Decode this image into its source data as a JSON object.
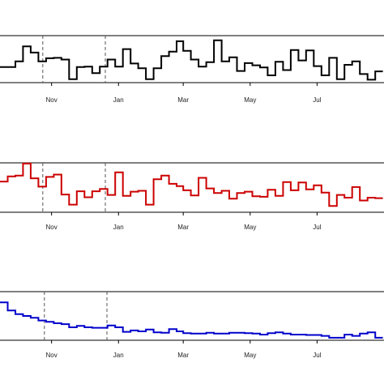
{
  "chart_data": [
    {
      "type": "line",
      "step": true,
      "color": "#000000",
      "x_ticks": [
        "Nov",
        "Jan",
        "Mar",
        "May",
        "Jul"
      ],
      "dashed_lines": [
        "Oct 24",
        "Dec 20"
      ],
      "ylim": [
        0,
        1
      ],
      "series": [
        {
          "x": [
            "Sep 15",
            "Sep 22",
            "Sep 29",
            "Oct 6",
            "Oct 13",
            "Oct 20",
            "Oct 27",
            "Nov 3",
            "Nov 10",
            "Nov 17",
            "Nov 24",
            "Dec 1",
            "Dec 8",
            "Dec 15",
            "Dec 22",
            "Dec 29",
            "Jan 5",
            "Jan 12",
            "Jan 19",
            "Jan 26",
            "Feb 2",
            "Feb 9",
            "Feb 16",
            "Feb 23",
            "Mar 1",
            "Mar 8",
            "Mar 15",
            "Mar 22",
            "Mar 29",
            "Apr 5",
            "Apr 12",
            "Apr 19",
            "Apr 26",
            "May 3",
            "May 10",
            "May 17",
            "May 24",
            "May 31",
            "Jun 7",
            "Jun 14",
            "Jun 21",
            "Jun 28",
            "Jul 5",
            "Jul 12",
            "Jul 19",
            "Jul 26",
            "Aug 2",
            "Aug 9",
            "Aug 16",
            "Aug 23"
          ],
          "values": [
            0.32,
            0.32,
            0.45,
            0.79,
            0.65,
            0.45,
            0.52,
            0.53,
            0.49,
            0.04,
            0.32,
            0.33,
            0.18,
            0.33,
            0.49,
            0.33,
            0.73,
            0.4,
            0.29,
            0.04,
            0.29,
            0.57,
            0.67,
            0.91,
            0.69,
            0.49,
            0.33,
            0.43,
            0.93,
            0.45,
            0.54,
            0.23,
            0.41,
            0.36,
            0.31,
            0.13,
            0.44,
            0.25,
            0.71,
            0.47,
            0.7,
            0.34,
            0.13,
            0.53,
            0.04,
            0.37,
            0.45,
            0.16,
            0.03,
            0.22
          ]
        }
      ]
    },
    {
      "type": "line",
      "step": true,
      "color": "#cc0000",
      "x_ticks": [
        "Nov",
        "Jan",
        "Mar",
        "May",
        "Jul"
      ],
      "dashed_lines": [
        "Oct 24",
        "Dec 20"
      ],
      "ylim": [
        0,
        1
      ],
      "series": [
        {
          "x": [
            "Sep 15",
            "Sep 22",
            "Sep 29",
            "Oct 6",
            "Oct 13",
            "Oct 20",
            "Oct 27",
            "Nov 3",
            "Nov 10",
            "Nov 17",
            "Nov 24",
            "Dec 1",
            "Dec 8",
            "Dec 15",
            "Dec 22",
            "Dec 29",
            "Jan 5",
            "Jan 12",
            "Jan 19",
            "Jan 26",
            "Feb 2",
            "Feb 9",
            "Feb 16",
            "Feb 23",
            "Mar 1",
            "Mar 8",
            "Mar 15",
            "Mar 22",
            "Mar 29",
            "Apr 5",
            "Apr 12",
            "Apr 19",
            "Apr 26",
            "May 3",
            "May 10",
            "May 17",
            "May 24",
            "May 31",
            "Jun 7",
            "Jun 14",
            "Jun 21",
            "Jun 28",
            "Jul 5",
            "Jul 12",
            "Jul 19",
            "Jul 26",
            "Aug 2",
            "Aug 9",
            "Aug 16",
            "Aug 23"
          ],
          "values": [
            0.63,
            0.74,
            0.76,
            1.02,
            0.7,
            0.52,
            0.73,
            0.78,
            0.35,
            0.13,
            0.42,
            0.29,
            0.42,
            0.47,
            0.34,
            0.83,
            0.32,
            0.41,
            0.43,
            0.13,
            0.68,
            0.76,
            0.58,
            0.53,
            0.44,
            0.33,
            0.71,
            0.48,
            0.38,
            0.43,
            0.26,
            0.38,
            0.41,
            0.31,
            0.3,
            0.45,
            0.32,
            0.62,
            0.44,
            0.61,
            0.46,
            0.55,
            0.39,
            0.1,
            0.34,
            0.28,
            0.51,
            0.22,
            0.28,
            0.27
          ]
        }
      ]
    },
    {
      "type": "line",
      "step": true,
      "color": "#0000cc",
      "x_ticks": [
        "Nov",
        "Jan",
        "Mar",
        "May",
        "Jul"
      ],
      "dashed_lines": [
        "Oct 24",
        "Dec 20"
      ],
      "ylim": [
        0,
        1
      ],
      "series": [
        {
          "x": [
            "Sep 15",
            "Sep 22",
            "Sep 29",
            "Oct 6",
            "Oct 13",
            "Oct 20",
            "Oct 27",
            "Nov 3",
            "Nov 10",
            "Nov 17",
            "Nov 24",
            "Dec 1",
            "Dec 8",
            "Dec 15",
            "Dec 22",
            "Dec 29",
            "Jan 5",
            "Jan 12",
            "Jan 19",
            "Jan 26",
            "Feb 2",
            "Feb 9",
            "Feb 16",
            "Feb 23",
            "Mar 1",
            "Mar 8",
            "Mar 15",
            "Mar 22",
            "Mar 29",
            "Apr 5",
            "Apr 12",
            "Apr 19",
            "Apr 26",
            "May 3",
            "May 10",
            "May 17",
            "May 24",
            "May 31",
            "Jun 7",
            "Jun 14",
            "Jun 21",
            "Jun 28",
            "Jul 5",
            "Jul 12",
            "Jul 19",
            "Jul 26",
            "Aug 2",
            "Aug 9",
            "Aug 16",
            "Aug 23"
          ],
          "values": [
            0.8,
            0.62,
            0.54,
            0.5,
            0.46,
            0.4,
            0.37,
            0.34,
            0.32,
            0.25,
            0.28,
            0.25,
            0.24,
            0.24,
            0.29,
            0.25,
            0.15,
            0.18,
            0.16,
            0.2,
            0.14,
            0.13,
            0.21,
            0.16,
            0.12,
            0.11,
            0.11,
            0.13,
            0.11,
            0.11,
            0.13,
            0.13,
            0.12,
            0.11,
            0.09,
            0.12,
            0.14,
            0.11,
            0.09,
            0.09,
            0.08,
            0.08,
            0.06,
            0.02,
            0.02,
            0.09,
            0.06,
            0.11,
            0.14,
            0.02
          ]
        }
      ]
    }
  ]
}
